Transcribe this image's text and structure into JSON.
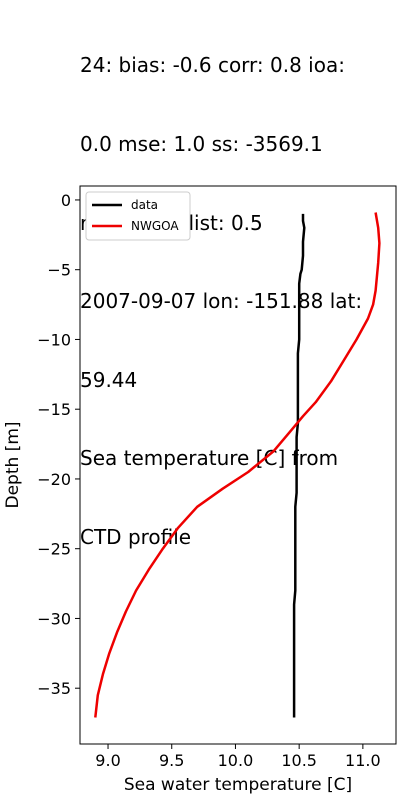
{
  "chart_data": {
    "type": "line",
    "title_lines": [
      "24: bias: -0.6  corr: 0.8  ioa:",
      "0.0  mse: 1.0  ss: -3569.1",
      "rmse: 1.0  dist: 0.5",
      "2007-09-07 lon: -151.88 lat:",
      "59.44",
      "Sea temperature [C] from",
      "CTD profile"
    ],
    "xlabel": "Sea water temperature [C]",
    "ylabel": "Depth [m]",
    "xlim": [
      8.78,
      11.26
    ],
    "ylim": [
      -39.0,
      1.0
    ],
    "x_ticks": [
      9.0,
      9.5,
      10.0,
      10.5,
      11.0
    ],
    "x_tick_labels": [
      "9.0",
      "9.5",
      "10.0",
      "10.5",
      "11.0"
    ],
    "y_ticks": [
      0,
      -5,
      -10,
      -15,
      -20,
      -25,
      -30,
      -35
    ],
    "y_tick_labels": [
      "0",
      "−5",
      "−10",
      "−15",
      "−20",
      "−25",
      "−30",
      "−35"
    ],
    "legend_position": "top-left",
    "grid": false,
    "series": [
      {
        "name": "data",
        "color": "#000000",
        "points": [
          [
            10.53,
            -1.0
          ],
          [
            10.53,
            -1.5
          ],
          [
            10.54,
            -2.0
          ],
          [
            10.53,
            -3.0
          ],
          [
            10.53,
            -4.0
          ],
          [
            10.52,
            -5.0
          ],
          [
            10.51,
            -5.3
          ],
          [
            10.5,
            -6.0
          ],
          [
            10.5,
            -7.0
          ],
          [
            10.5,
            -8.0
          ],
          [
            10.5,
            -8.8
          ],
          [
            10.5,
            -9.5
          ],
          [
            10.5,
            -10.0
          ],
          [
            10.49,
            -11.0
          ],
          [
            10.49,
            -12.0
          ],
          [
            10.49,
            -13.0
          ],
          [
            10.49,
            -14.0
          ],
          [
            10.49,
            -15.0
          ],
          [
            10.49,
            -16.0
          ],
          [
            10.48,
            -17.0
          ],
          [
            10.48,
            -18.0
          ],
          [
            10.48,
            -19.0
          ],
          [
            10.48,
            -20.0
          ],
          [
            10.48,
            -21.0
          ],
          [
            10.47,
            -22.0
          ],
          [
            10.47,
            -23.0
          ],
          [
            10.47,
            -24.0
          ],
          [
            10.47,
            -25.0
          ],
          [
            10.47,
            -26.0
          ],
          [
            10.47,
            -27.0
          ],
          [
            10.47,
            -28.0
          ],
          [
            10.46,
            -29.0
          ],
          [
            10.46,
            -30.0
          ],
          [
            10.46,
            -31.0
          ],
          [
            10.46,
            -32.0
          ],
          [
            10.46,
            -33.0
          ],
          [
            10.46,
            -34.0
          ],
          [
            10.46,
            -35.0
          ],
          [
            10.46,
            -36.0
          ],
          [
            10.46,
            -37.1
          ]
        ]
      },
      {
        "name": "NWGOA",
        "color": "#ee0000",
        "points": [
          [
            11.1,
            -0.9
          ],
          [
            11.12,
            -2.0
          ],
          [
            11.13,
            -3.1
          ],
          [
            11.12,
            -4.5
          ],
          [
            11.11,
            -5.5
          ],
          [
            11.1,
            -6.5
          ],
          [
            11.08,
            -7.5
          ],
          [
            11.04,
            -8.5
          ],
          [
            10.95,
            -10.0
          ],
          [
            10.85,
            -11.5
          ],
          [
            10.75,
            -13.0
          ],
          [
            10.63,
            -14.5
          ],
          [
            10.53,
            -15.5
          ],
          [
            10.42,
            -16.7
          ],
          [
            10.3,
            -18.0
          ],
          [
            10.1,
            -19.5
          ],
          [
            9.9,
            -20.7
          ],
          [
            9.7,
            -22.0
          ],
          [
            9.55,
            -23.5
          ],
          [
            9.43,
            -25.0
          ],
          [
            9.32,
            -26.5
          ],
          [
            9.22,
            -28.0
          ],
          [
            9.14,
            -29.5
          ],
          [
            9.07,
            -31.0
          ],
          [
            9.01,
            -32.5
          ],
          [
            8.96,
            -34.0
          ],
          [
            8.92,
            -35.5
          ],
          [
            8.9,
            -37.1
          ]
        ]
      }
    ]
  }
}
